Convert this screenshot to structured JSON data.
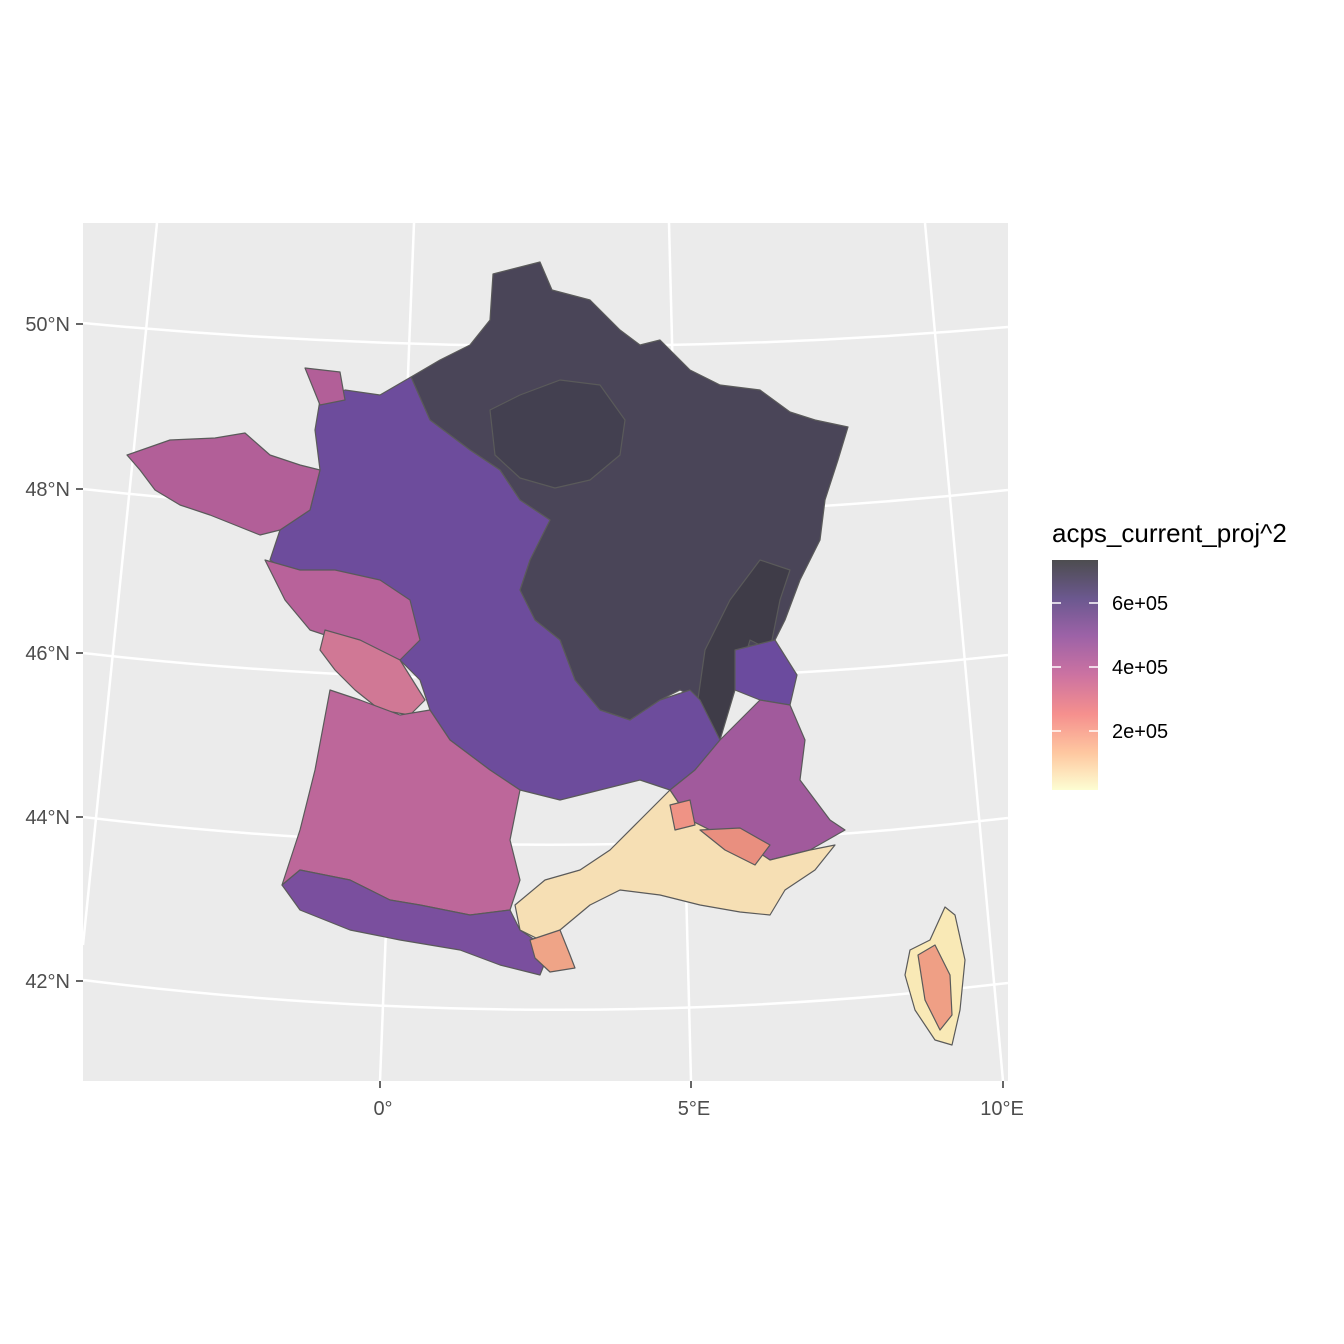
{
  "map": {
    "latitude_labels": [
      "50°N",
      "48°N",
      "46°N",
      "44°N",
      "42°N"
    ],
    "longitude_labels": [
      "0°",
      "5°E",
      "10°E"
    ]
  },
  "legend": {
    "title": "acps_current_proj^2",
    "ticks": [
      {
        "value": 600000,
        "label": "6e+05"
      },
      {
        "value": 400000,
        "label": "4e+05"
      },
      {
        "value": 200000,
        "label": "2e+05"
      }
    ],
    "gradient_colors": [
      "#FCFDBF",
      "#FEB078",
      "#F1605D",
      "#B63679",
      "#721F81",
      "#2D1160",
      "#000004"
    ],
    "fill_alpha": 0.7
  },
  "colors": {
    "panel_background": "#EBEBEB",
    "grid": "#FFFFFF",
    "region_border": "#5a5a5a"
  }
}
